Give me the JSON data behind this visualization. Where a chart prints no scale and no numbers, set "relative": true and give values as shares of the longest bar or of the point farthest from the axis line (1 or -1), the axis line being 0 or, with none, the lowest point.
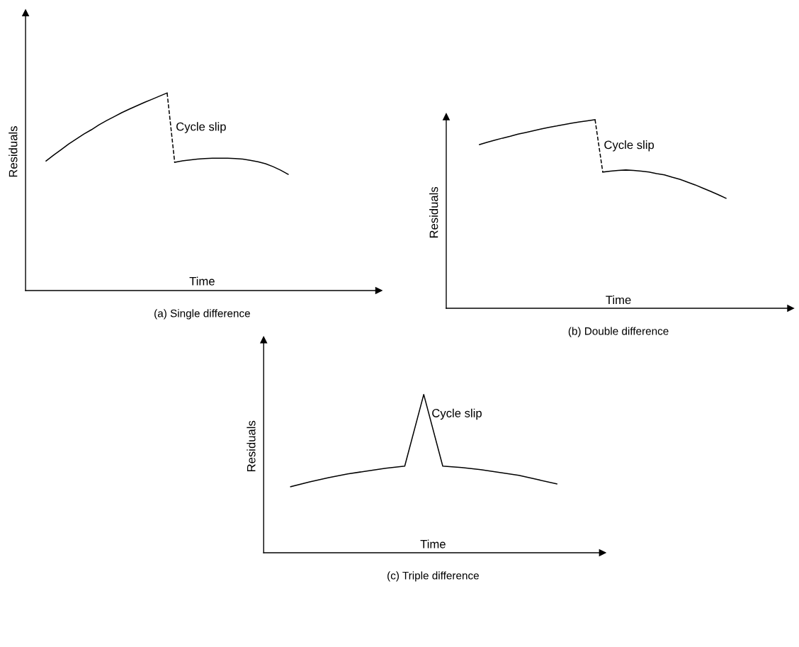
{
  "chart_data": [
    {
      "type": "line",
      "title": "(a) Single difference",
      "xlabel": "Time",
      "ylabel": "Residuals",
      "relative": true,
      "categories": [
        null,
        null,
        null,
        null,
        null,
        null,
        null,
        null,
        null,
        null,
        null,
        null,
        null,
        null,
        null,
        null,
        null,
        null,
        null,
        null,
        null,
        null,
        null,
        null,
        null,
        null,
        null,
        null,
        null,
        null,
        null,
        null,
        null
      ],
      "series": [
        {
          "color": "#000000",
          "values": [
            0.656,
            0.685,
            0.713,
            0.742,
            0.767,
            0.792,
            0.814,
            0.839,
            0.86,
            0.88,
            0.9,
            0.918,
            0.935,
            0.952,
            0.968,
            0.984,
            1,
            null,
            null,
            null,
            null,
            null,
            null,
            null,
            null,
            null,
            null,
            null,
            null,
            null,
            null,
            null,
            null
          ]
        },
        {
          "color": "#000000",
          "line_style": "dashed",
          "values": [
            null,
            null,
            null,
            null,
            null,
            null,
            null,
            null,
            null,
            null,
            null,
            null,
            null,
            null,
            null,
            null,
            1,
            0.649,
            null,
            null,
            null,
            null,
            null,
            null,
            null,
            null,
            null,
            null,
            null,
            null,
            null,
            null,
            null
          ]
        },
        {
          "color": "#000000",
          "values": [
            null,
            null,
            null,
            null,
            null,
            null,
            null,
            null,
            null,
            null,
            null,
            null,
            null,
            null,
            null,
            null,
            null,
            0.649,
            0.656,
            0.661,
            0.665,
            0.668,
            0.67,
            0.67,
            0.67,
            0.668,
            0.665,
            0.659,
            0.652,
            0.642,
            0.627,
            0.609,
            0.588
          ]
        }
      ],
      "annotations": [
        "Cycle slip"
      ],
      "tick_labels": false,
      "line_style": "solid"
    },
    {
      "type": "line",
      "title": "(b) Double difference",
      "xlabel": "Time",
      "ylabel": "Residuals",
      "relative": true,
      "categories": [
        null,
        null,
        null,
        null,
        null,
        null,
        null,
        null,
        null,
        null,
        null,
        null,
        null,
        null,
        null,
        null,
        null,
        null,
        null,
        null,
        null,
        null,
        null,
        null,
        null,
        null,
        null,
        null,
        null,
        null,
        null,
        null,
        null
      ],
      "series": [
        {
          "color": "#000000",
          "values": [
            0.868,
            0.88,
            0.891,
            0.902,
            0.912,
            0.923,
            0.932,
            0.941,
            0.95,
            0.959,
            0.966,
            0.974,
            0.981,
            0.988,
            0.994,
            1,
            null,
            null,
            null,
            null,
            null,
            null,
            null,
            null,
            null,
            null,
            null,
            null,
            null,
            null,
            null,
            null,
            null
          ]
        },
        {
          "color": "#000000",
          "line_style": "dashed",
          "values": [
            null,
            null,
            null,
            null,
            null,
            null,
            null,
            null,
            null,
            null,
            null,
            null,
            null,
            null,
            null,
            1,
            0.722,
            null,
            null,
            null,
            null,
            null,
            null,
            null,
            null,
            null,
            null,
            null,
            null,
            null,
            null,
            null,
            null
          ]
        },
        {
          "color": "#000000",
          "values": [
            null,
            null,
            null,
            null,
            null,
            null,
            null,
            null,
            null,
            null,
            null,
            null,
            null,
            null,
            null,
            null,
            0.722,
            0.727,
            0.731,
            0.733,
            0.731,
            0.727,
            0.722,
            0.714,
            0.707,
            0.695,
            0.684,
            0.669,
            0.654,
            0.637,
            0.62,
            0.602,
            0.583
          ]
        }
      ],
      "annotations": [
        "Cycle slip"
      ],
      "tick_labels": false,
      "line_style": "solid"
    },
    {
      "type": "line",
      "title": "(c) Triple difference",
      "xlabel": "Time",
      "ylabel": "Residuals",
      "relative": true,
      "categories": [
        null,
        null,
        null,
        null,
        null,
        null,
        null,
        null,
        null,
        null,
        null,
        null,
        null,
        null,
        null
      ],
      "series": [
        {
          "color": "#000000",
          "values": [
            0.417,
            0.448,
            0.475,
            0.498,
            0.516,
            0.534,
            0.547,
            1,
            0.547,
            0.538,
            0.525,
            0.507,
            0.489,
            0.462,
            0.435
          ]
        }
      ],
      "annotations": [
        "Cycle slip"
      ],
      "tick_labels": false,
      "line_style": "solid"
    }
  ]
}
